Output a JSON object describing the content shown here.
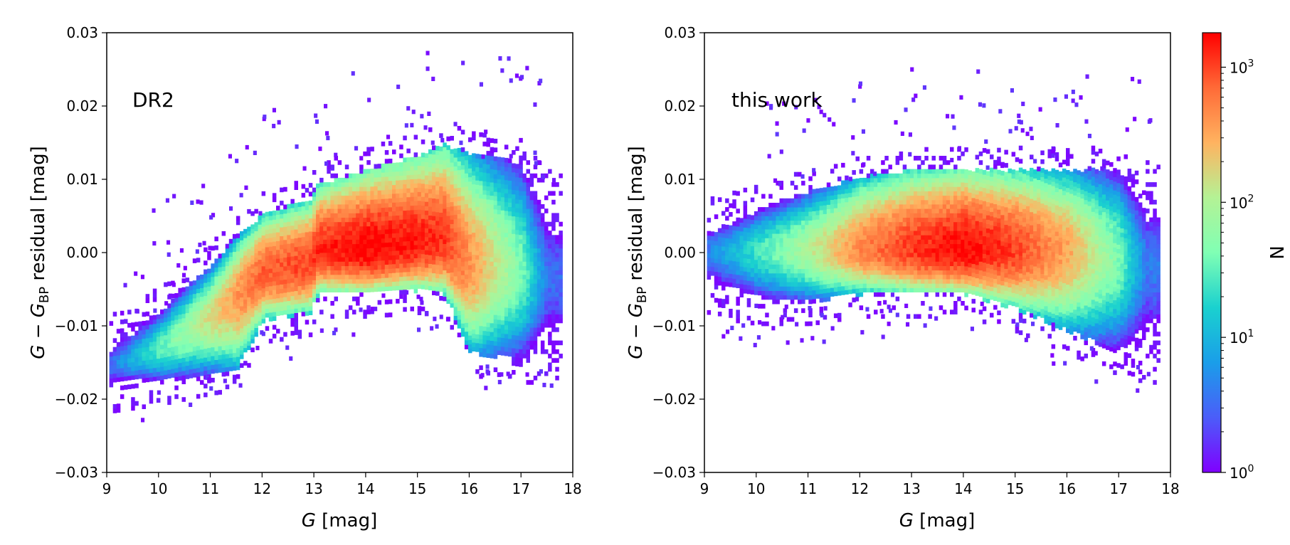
{
  "chart_data": [
    {
      "type": "heatmap",
      "panel_label": "DR2",
      "xlabel_italic": "G",
      "xlabel_rest": " [mag]",
      "ylabel_main": "G − G",
      "ylabel_sub": "BP",
      "ylabel_rest": " residual [mag]",
      "xlim": [
        9,
        18
      ],
      "ylim": [
        -0.03,
        0.03
      ],
      "xticks": [
        9,
        10,
        11,
        12,
        13,
        14,
        15,
        16,
        17,
        18
      ],
      "xtick_labels": [
        "9",
        "10",
        "11",
        "12",
        "13",
        "14",
        "15",
        "16",
        "17",
        "18"
      ],
      "yticks": [
        -0.03,
        -0.02,
        -0.01,
        0.0,
        0.01,
        0.02,
        0.03
      ],
      "ytick_labels": [
        "−0.03",
        "−0.02",
        "−0.01",
        "0.00",
        "0.01",
        "0.02",
        "0.03"
      ],
      "ridge": {
        "G": [
          9.0,
          10.0,
          11.0,
          11.5,
          12.0,
          12.9,
          13.05,
          14.0,
          15.0,
          15.5,
          16.0,
          17.0,
          17.5
        ],
        "center": [
          -0.016,
          -0.0135,
          -0.009,
          -0.006,
          -0.003,
          -0.002,
          0.0,
          0.0,
          0.001,
          0.001,
          -0.002,
          -0.003,
          -0.004
        ],
        "lower_edge": [
          -0.019,
          -0.018,
          -0.0165,
          -0.016,
          -0.0095,
          -0.0085,
          -0.006,
          -0.006,
          -0.0055,
          -0.006,
          -0.014,
          -0.015,
          -0.015
        ],
        "upper_edge": [
          -0.012,
          -0.008,
          -0.002,
          0.002,
          0.005,
          0.007,
          0.009,
          0.011,
          0.013,
          0.0145,
          0.013,
          0.012,
          0.008
        ],
        "log10_peak_N": [
          0.5,
          1.5,
          2.2,
          2.6,
          2.9,
          3.0,
          3.1,
          3.25,
          3.15,
          3.05,
          2.6,
          1.6,
          0.5
        ]
      }
    },
    {
      "type": "heatmap",
      "panel_label": "this work",
      "xlabel_italic": "G",
      "xlabel_rest": " [mag]",
      "ylabel_main": "G − G",
      "ylabel_sub": "BP",
      "ylabel_rest": " residual [mag]",
      "xlim": [
        9,
        18
      ],
      "ylim": [
        -0.03,
        0.03
      ],
      "xticks": [
        9,
        10,
        11,
        12,
        13,
        14,
        15,
        16,
        17,
        18
      ],
      "xtick_labels": [
        "9",
        "10",
        "11",
        "12",
        "13",
        "14",
        "15",
        "16",
        "17",
        "18"
      ],
      "yticks": [
        -0.03,
        -0.02,
        -0.01,
        0.0,
        0.01,
        0.02,
        0.03
      ],
      "ytick_labels": [
        "−0.03",
        "−0.02",
        "−0.01",
        "0.00",
        "0.01",
        "0.02",
        "0.03"
      ],
      "ridge": {
        "G": [
          9.0,
          10.0,
          11.0,
          12.0,
          13.0,
          14.0,
          15.0,
          16.0,
          17.0,
          17.5
        ],
        "center": [
          0.0,
          0.0,
          0.0,
          0.0,
          0.0,
          0.0,
          0.0,
          0.0,
          -0.001,
          -0.002
        ],
        "lower_edge": [
          -0.006,
          -0.007,
          -0.007,
          -0.006,
          -0.006,
          -0.006,
          -0.008,
          -0.011,
          -0.014,
          -0.015
        ],
        "upper_edge": [
          0.004,
          0.006,
          0.008,
          0.01,
          0.011,
          0.011,
          0.011,
          0.011,
          0.011,
          0.009
        ],
        "log10_peak_N": [
          0.6,
          1.4,
          2.0,
          2.7,
          3.05,
          3.25,
          3.0,
          2.5,
          1.6,
          0.6
        ]
      }
    }
  ],
  "colorbar": {
    "label": "N",
    "scale": "log",
    "range": [
      1,
      1800
    ],
    "tick_mantissa": [
      "10",
      "10",
      "10",
      "10"
    ],
    "tick_exponent": [
      "0",
      "1",
      "2",
      "3"
    ],
    "colormap": "rainbow"
  }
}
